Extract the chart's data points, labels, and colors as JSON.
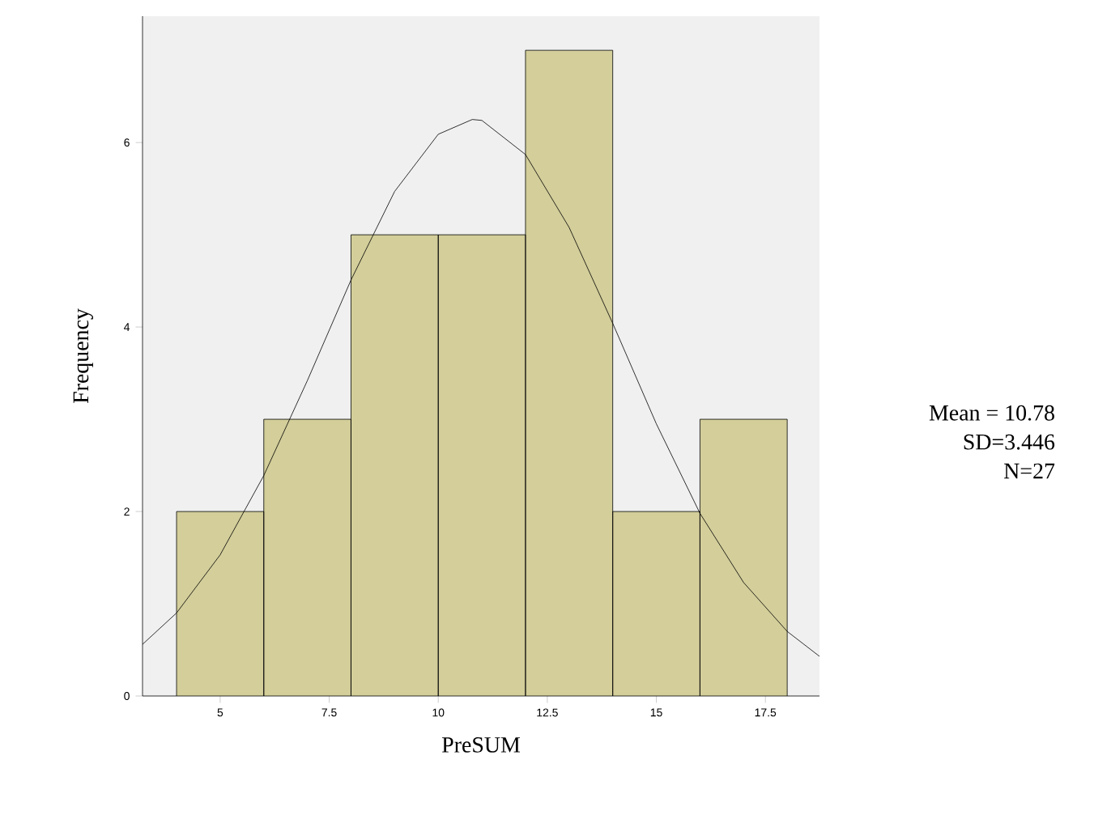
{
  "chart_data": {
    "type": "histogram",
    "xlabel": "PreSUM",
    "ylabel": "Frequency",
    "bins": [
      4,
      6,
      8,
      10,
      12,
      14,
      16,
      18
    ],
    "values": [
      2,
      3,
      5,
      5,
      7,
      2,
      3
    ],
    "color": "#d3ce9a",
    "xlim": [
      3.22,
      18.74
    ],
    "ylim": [
      0,
      7.37
    ],
    "xticks": [
      5,
      7.5,
      10,
      12.5,
      15,
      17.5
    ],
    "yticks": [
      0,
      2,
      4,
      6
    ],
    "grid": false,
    "series": [
      {
        "type": "line",
        "color": "#000000",
        "x": [
          3.22,
          4,
          5,
          6,
          7,
          8,
          9,
          10,
          10.78,
          11,
          12,
          13,
          14,
          15,
          16,
          17,
          18,
          18.74
        ],
        "values": [
          0.56,
          0.9,
          1.53,
          2.39,
          3.42,
          4.51,
          5.47,
          6.09,
          6.25,
          6.24,
          5.87,
          5.08,
          4.04,
          2.95,
          1.98,
          1.23,
          0.7,
          0.43
        ]
      }
    ],
    "annotations": [
      "Mean = 10.78",
      "SD=3.446",
      "N=27"
    ]
  }
}
